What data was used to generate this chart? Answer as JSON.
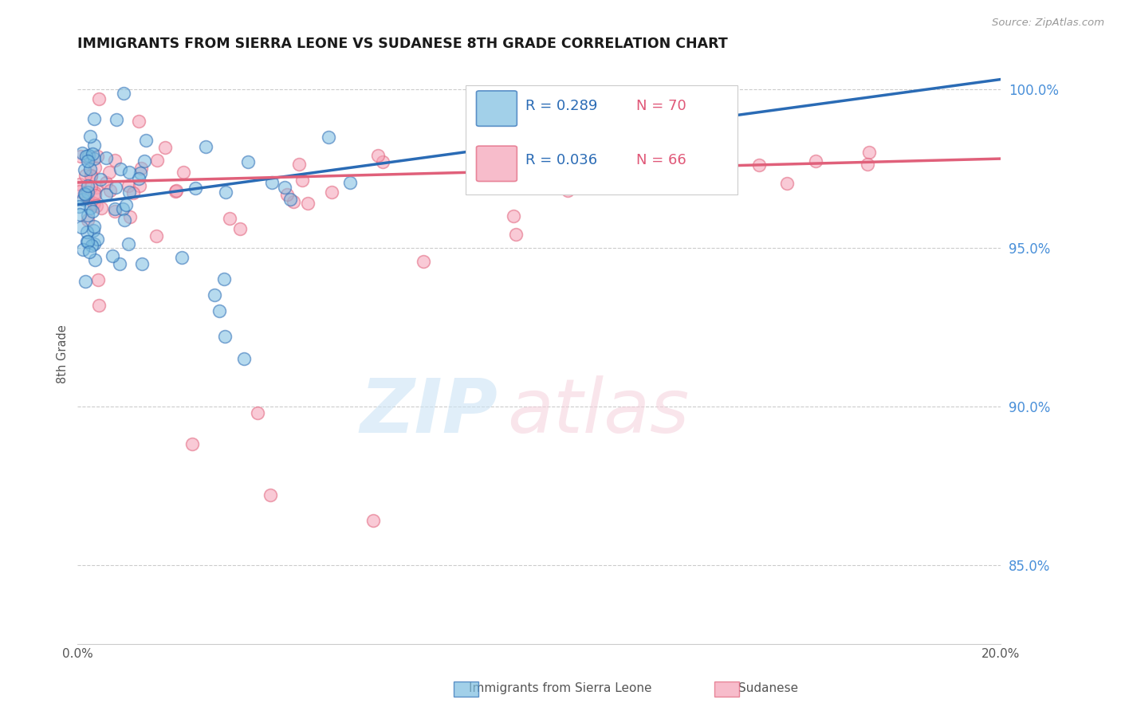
{
  "title": "IMMIGRANTS FROM SIERRA LEONE VS SUDANESE 8TH GRADE CORRELATION CHART",
  "source": "Source: ZipAtlas.com",
  "ylabel": "8th Grade",
  "right_yticks": [
    "100.0%",
    "95.0%",
    "90.0%",
    "85.0%"
  ],
  "right_ytick_vals": [
    1.0,
    0.95,
    0.9,
    0.85
  ],
  "sierra_leone_color": "#7bbde0",
  "sudanese_color": "#f5a0b5",
  "sierra_leone_line_color": "#2a6bb5",
  "sudanese_line_color": "#e0607a",
  "xmin": 0.0,
  "xmax": 0.2,
  "ymin": 0.825,
  "ymax": 1.008,
  "sl_trend_x0": 0.0,
  "sl_trend_y0": 0.9635,
  "sl_trend_x1": 0.2,
  "sl_trend_y1": 1.003,
  "sud_trend_x0": 0.0,
  "sud_trend_y0": 0.9705,
  "sud_trend_x1": 0.2,
  "sud_trend_y1": 0.978,
  "legend_r1": "R = 0.289",
  "legend_n1": "N = 70",
  "legend_r2": "R = 0.036",
  "legend_n2": "N = 66"
}
